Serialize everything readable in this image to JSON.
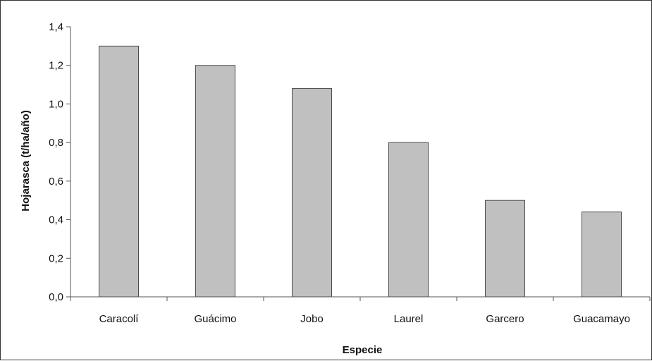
{
  "chart_data": {
    "type": "bar",
    "categories": [
      "Caracolí",
      "Guácimo",
      "Jobo",
      "Laurel",
      "Garcero",
      "Guacamayo"
    ],
    "values": [
      1.3,
      1.2,
      1.08,
      0.8,
      0.5,
      0.44
    ],
    "xlabel": "Especie",
    "ylabel": "Hojarasca (t/ha/año)",
    "ylim": [
      0,
      1.4
    ],
    "yticks": [
      "0,0",
      "0,2",
      "0,4",
      "0,6",
      "0,8",
      "1,0",
      "1,2",
      "1,4"
    ],
    "grid": false,
    "legend": "none",
    "colors": {
      "bar_fill": "#c0c0c0",
      "bar_stroke": "#4d4d4d",
      "axis": "#555555"
    }
  }
}
